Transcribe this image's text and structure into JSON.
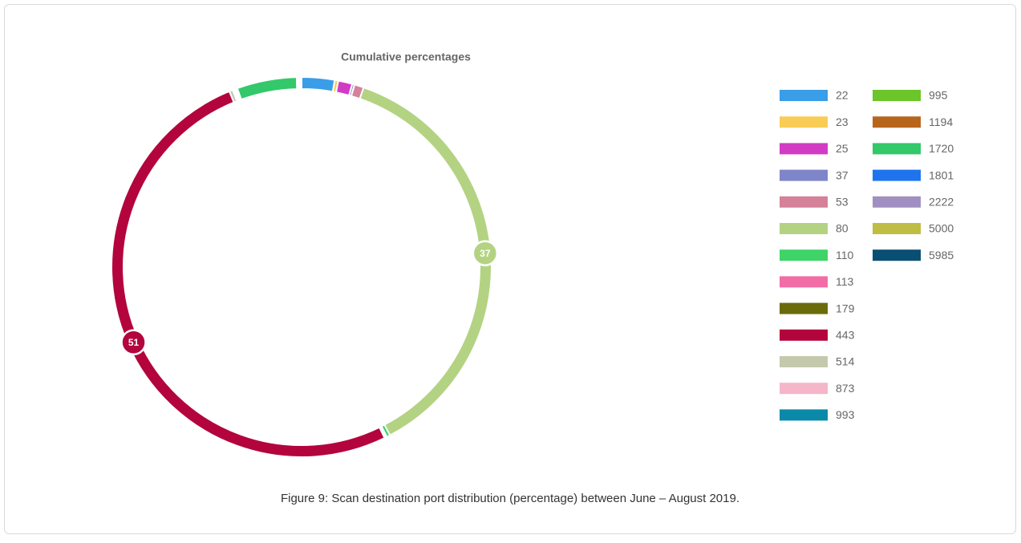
{
  "chart_data": {
    "type": "pie",
    "title": "Cumulative percentages",
    "caption": "Figure 9: Scan destination port distribution (percentage) between June – August 2019.",
    "categories": [
      "22",
      "23",
      "25",
      "37",
      "53",
      "80",
      "110",
      "113",
      "179",
      "443",
      "514",
      "873",
      "993",
      "995",
      "1194",
      "1720",
      "1801",
      "2222",
      "5000",
      "5985"
    ],
    "values": [
      2.8,
      0.3,
      1.2,
      0.2,
      0.8,
      37,
      0.3,
      0.1,
      0.1,
      51,
      0.3,
      0.1,
      0.1,
      0.1,
      0.1,
      5.1,
      0.1,
      0.1,
      0.1,
      0.1
    ],
    "colors": [
      "#3a9de8",
      "#f8cc55",
      "#d23bc4",
      "#7f85c9",
      "#d5819a",
      "#b3d383",
      "#3ed467",
      "#f26da6",
      "#6b6b0a",
      "#b3043d",
      "#c4c9ad",
      "#f5b6c9",
      "#0a8aa8",
      "#6cc529",
      "#b8651c",
      "#33c86a",
      "#1f74ee",
      "#a28fc2",
      "#c0bd45",
      "#0a4f73"
    ],
    "legend": "right"
  }
}
